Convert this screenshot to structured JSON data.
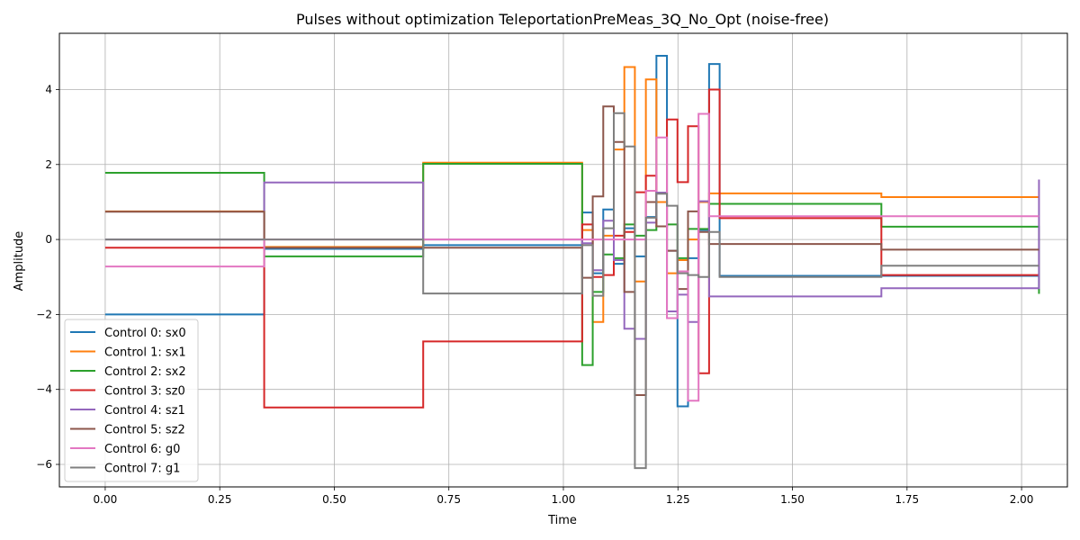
{
  "chart_data": {
    "type": "line",
    "title": "Pulses without optimization TeleportationPreMeas_3Q_No_Opt (noise-free)",
    "xlabel": "Time",
    "ylabel": "Amplitude",
    "xlim": [
      -0.1,
      2.1
    ],
    "ylim": [
      -6.6,
      5.5
    ],
    "xticks": [
      0.0,
      0.25,
      0.5,
      0.75,
      1.0,
      1.25,
      1.5,
      1.75,
      2.0
    ],
    "xtick_labels": [
      "0.00",
      "0.25",
      "0.50",
      "0.75",
      "1.00",
      "1.25",
      "1.50",
      "1.75",
      "2.00"
    ],
    "yticks": [
      -6,
      -4,
      -2,
      0,
      2,
      4
    ],
    "ytick_labels": [
      "−6",
      "−4",
      "−2",
      "0",
      "2",
      "4"
    ],
    "grid": true,
    "legend_position": "lower-left",
    "step": "post",
    "series": [
      {
        "name": "Control 0: sx0",
        "color": "#1f77b4",
        "x": [
          0.0,
          0.347,
          0.694,
          1.041,
          1.064,
          1.087,
          1.11,
          1.133,
          1.156,
          1.18,
          1.203,
          1.226,
          1.249,
          1.272,
          1.295,
          1.318,
          1.341,
          1.694,
          2.038
        ],
        "y": [
          -2.0,
          -0.25,
          -0.15,
          0.72,
          -0.9,
          0.8,
          -0.65,
          0.3,
          -0.45,
          0.6,
          4.9,
          -0.3,
          -4.45,
          -0.5,
          0.25,
          4.68,
          -0.97,
          -0.97,
          -1.35
        ]
      },
      {
        "name": "Control 1: sx1",
        "color": "#ff7f0e",
        "x": [
          0.0,
          0.347,
          0.694,
          1.041,
          1.064,
          1.087,
          1.11,
          1.133,
          1.156,
          1.18,
          1.203,
          1.226,
          1.249,
          1.272,
          1.295,
          1.318,
          1.341,
          1.694,
          2.038
        ],
        "y": [
          0.75,
          -0.2,
          2.05,
          0.25,
          -2.2,
          0.1,
          2.4,
          4.6,
          -1.12,
          4.27,
          1.0,
          -0.9,
          -0.55,
          0.0,
          1.0,
          1.23,
          1.23,
          1.13,
          1.13
        ]
      },
      {
        "name": "Control 2: sx2",
        "color": "#2ca02c",
        "x": [
          0.0,
          0.347,
          0.694,
          1.041,
          1.064,
          1.087,
          1.11,
          1.133,
          1.156,
          1.18,
          1.203,
          1.226,
          1.249,
          1.272,
          1.295,
          1.318,
          1.341,
          1.694,
          2.038
        ],
        "y": [
          1.78,
          -0.45,
          2.02,
          -3.35,
          -1.4,
          -0.4,
          -0.5,
          0.4,
          0.1,
          0.25,
          0.35,
          0.4,
          -0.5,
          0.28,
          0.28,
          0.95,
          0.95,
          0.34,
          -1.45
        ]
      },
      {
        "name": "Control 3: sz0",
        "color": "#d62728",
        "x": [
          0.0,
          0.347,
          0.694,
          1.041,
          1.064,
          1.087,
          1.11,
          1.133,
          1.156,
          1.18,
          1.203,
          1.226,
          1.249,
          1.272,
          1.295,
          1.318,
          1.341,
          1.694,
          2.038
        ],
        "y": [
          -0.22,
          -4.48,
          -2.72,
          0.4,
          -1.0,
          -0.95,
          0.1,
          0.2,
          1.26,
          1.7,
          0.35,
          3.2,
          1.53,
          3.02,
          -3.57,
          4.0,
          0.57,
          -0.95,
          -0.95
        ]
      },
      {
        "name": "Control 4: sz1",
        "color": "#9467bd",
        "x": [
          0.0,
          0.347,
          0.694,
          1.041,
          1.064,
          1.087,
          1.11,
          1.133,
          1.156,
          1.18,
          1.203,
          1.226,
          1.249,
          1.272,
          1.295,
          1.318,
          1.341,
          1.694,
          2.038
        ],
        "y": [
          0.0,
          1.52,
          0.0,
          -0.1,
          -0.82,
          0.5,
          -0.55,
          -2.38,
          -2.65,
          0.45,
          1.25,
          -1.92,
          -1.47,
          -2.2,
          1.02,
          -1.52,
          -1.52,
          -1.3,
          1.6
        ]
      },
      {
        "name": "Control 5: sz2",
        "color": "#8c564b",
        "x": [
          0.0,
          0.347,
          0.694,
          1.041,
          1.064,
          1.087,
          1.11,
          1.133,
          1.156,
          1.18,
          1.203,
          1.226,
          1.249,
          1.272,
          1.295,
          1.318,
          1.341,
          1.694,
          2.038
        ],
        "y": [
          0.74,
          -0.22,
          -0.22,
          -1.02,
          1.15,
          3.55,
          2.6,
          -1.4,
          -4.15,
          1.0,
          0.35,
          -0.3,
          -1.32,
          0.75,
          0.2,
          -0.12,
          -0.12,
          -0.27,
          -0.27
        ]
      },
      {
        "name": "Control 6: g0",
        "color": "#e377c2",
        "x": [
          0.0,
          0.347,
          0.694,
          1.041,
          1.064,
          1.087,
          1.11,
          1.133,
          1.156,
          1.18,
          1.203,
          1.226,
          1.249,
          1.272,
          1.295,
          1.318,
          1.341,
          1.694,
          2.038
        ],
        "y": [
          -0.72,
          0.0,
          0.0,
          0.0,
          0.0,
          0.0,
          0.0,
          0.0,
          0.0,
          1.3,
          2.72,
          -2.1,
          -0.85,
          -4.3,
          3.35,
          0.62,
          0.62,
          0.62,
          0.62
        ]
      },
      {
        "name": "Control 7: g1",
        "color": "#7f7f7f",
        "x": [
          0.0,
          0.347,
          0.694,
          1.041,
          1.064,
          1.087,
          1.11,
          1.133,
          1.156,
          1.18,
          1.203,
          1.226,
          1.249,
          1.272,
          1.295,
          1.318,
          1.341,
          1.694,
          2.038
        ],
        "y": [
          0.0,
          0.0,
          -1.44,
          -0.15,
          -1.5,
          0.3,
          3.37,
          2.48,
          -6.1,
          0.58,
          1.22,
          0.9,
          -0.9,
          -0.95,
          -1.0,
          0.2,
          -1.0,
          -0.7,
          -0.7
        ]
      }
    ]
  }
}
